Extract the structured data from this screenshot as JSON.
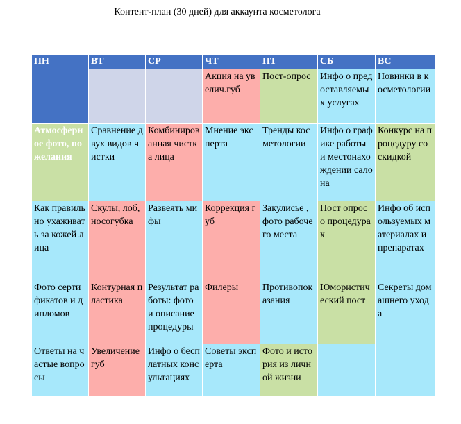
{
  "header": {
    "title": "Контент-план (30 дней) для аккаунта косметолога"
  },
  "table": {
    "columns": [
      "ПН",
      "ВТ",
      "СР",
      "ЧТ",
      "ПТ",
      "СБ",
      "ВС"
    ],
    "header_fill": "#4472c4",
    "rows": [
      [
        {
          "fill": "#4472c4"
        },
        {
          "fill": "#cfd5e9"
        },
        {
          "fill": "#cfd5e9"
        },
        {
          "text": "Акция на увелич.губ",
          "fill": "#fdaeab"
        },
        {
          "text": "Пост-опрос",
          "fill": "#c9e0a5"
        },
        {
          "text": "Инфо о предоставляемых услугах",
          "fill": "#a7e8fb"
        },
        {
          "text": "Новинки в косметологии",
          "fill": "#a7e8fb"
        }
      ],
      [
        {
          "text": "Атмосферное фото, пожелания",
          "fill": "#c9e0a5",
          "bold": true
        },
        {
          "text": "Сравнение двух видов чистки",
          "fill": "#a7e8fb"
        },
        {
          "text": "Комбинированная чистка лица",
          "fill": "#fdaeab"
        },
        {
          "text": "Мнение эксперта",
          "fill": "#a7e8fb"
        },
        {
          "text": "Тренды косметологии",
          "fill": "#a7e8fb"
        },
        {
          "text": "Инфо о графике работы и местонахождении салона",
          "fill": "#a7e8fb"
        },
        {
          "text": "Конкурс на процедуру со скидкой",
          "fill": "#c9e0a5"
        }
      ],
      [
        {
          "text": "Как правильно ухаживать за кожей лица",
          "fill": "#a7e8fb"
        },
        {
          "text": "Скулы, лоб, носогубка",
          "fill": "#fdaeab"
        },
        {
          "text": "Развеять мифы",
          "fill": "#a7e8fb"
        },
        {
          "text": "Коррекция губ",
          "fill": "#fdaeab"
        },
        {
          "text": "Закулисье , фото рабочего места",
          "fill": "#a7e8fb"
        },
        {
          "text": "Пост опрос о процедурах",
          "fill": "#c9e0a5"
        },
        {
          "text": "Инфо об используемых материалах и препаратах",
          "fill": "#a7e8fb"
        }
      ],
      [
        {
          "text": "Фото сертификатов и дипломов",
          "fill": "#a7e8fb"
        },
        {
          "text": "Контурная пластика",
          "fill": "#fdaeab"
        },
        {
          "text": "Результат работы: фото и описание процедуры",
          "fill": "#a7e8fb"
        },
        {
          "text": "Филеры",
          "fill": "#fdaeab"
        },
        {
          "text": "Противопоказания",
          "fill": "#a7e8fb"
        },
        {
          "text": "Юмористический пост",
          "fill": "#c9e0a5"
        },
        {
          "text": "Секреты домашнего ухода",
          "fill": "#a7e8fb"
        }
      ],
      [
        {
          "text": "Ответы на частые вопросы",
          "fill": "#a7e8fb"
        },
        {
          "text": "Увеличение губ",
          "fill": "#fdaeab"
        },
        {
          "text": "Инфо о бесплатных консультациях",
          "fill": "#a7e8fb"
        },
        {
          "text": "Советы эксперта",
          "fill": "#a7e8fb"
        },
        {
          "text": "Фото и история из личной жизни",
          "fill": "#c9e0a5"
        },
        {
          "fill": "#a7e8fb"
        },
        {
          "fill": "#a7e8fb"
        }
      ]
    ]
  }
}
